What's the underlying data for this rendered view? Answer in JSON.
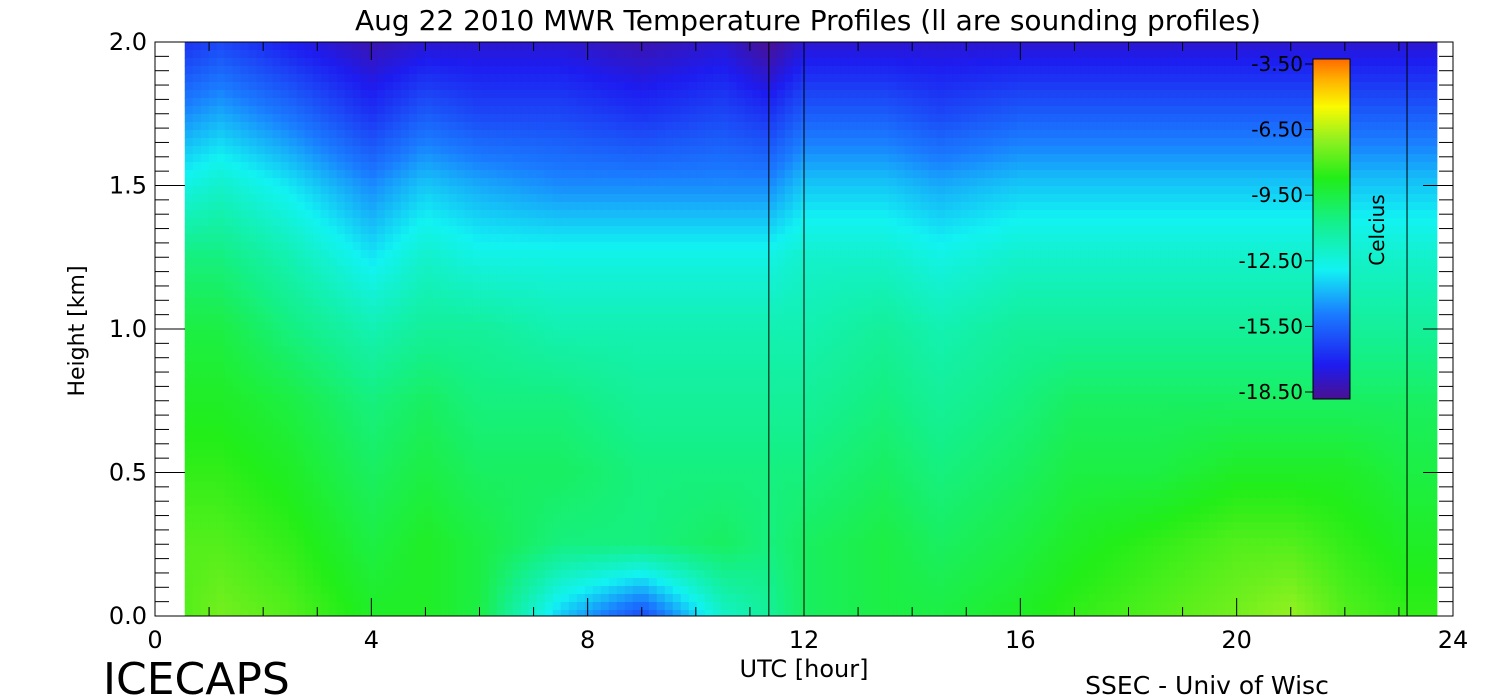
{
  "chart_data": {
    "type": "heatmap",
    "title": "Aug 22 2010 MWR Temperature Profiles (ll are sounding profiles)",
    "xlabel": "UTC [hour]",
    "ylabel": "Height [km]",
    "xlim": [
      0,
      24
    ],
    "ylim": [
      0,
      2
    ],
    "x_ticks": [
      "0",
      "4",
      "8",
      "12",
      "16",
      "20",
      "24"
    ],
    "y_ticks": [
      "0.0",
      "0.5",
      "1.0",
      "1.5",
      "2.0"
    ],
    "data_x_range": [
      0.55,
      23.7
    ],
    "colorbar": {
      "label": "Celcius",
      "range": [
        -18.5,
        -3.5
      ],
      "ticks": [
        "-3.50",
        "-6.50",
        "-9.50",
        "-12.50",
        "-15.50",
        "-18.50"
      ]
    },
    "sounding_times_hours": [
      11.35,
      12.0,
      23.15
    ],
    "approx_temperature_grid": {
      "times_hours": [
        0.55,
        1.2,
        2.5,
        4.0,
        5.0,
        6.0,
        7.5,
        9.0,
        10.5,
        11.35,
        12.0,
        13.5,
        14.5,
        16.0,
        17.0,
        18.5,
        20.0,
        21.0,
        22.0,
        23.15,
        23.7
      ],
      "heights_km": [
        0.0,
        0.25,
        0.5,
        0.75,
        1.0,
        1.25,
        1.5,
        1.75,
        2.0
      ],
      "celsius": [
        [
          -8.0,
          -8.0,
          -8.5,
          -9.0,
          -9.5,
          -10.5,
          -12.5,
          -14.5,
          -16.5
        ],
        [
          -7.5,
          -8.0,
          -8.5,
          -9.0,
          -9.5,
          -10.5,
          -12.0,
          -14.0,
          -16.0
        ],
        [
          -8.0,
          -8.5,
          -9.0,
          -9.5,
          -10.5,
          -11.5,
          -13.0,
          -15.0,
          -17.0
        ],
        [
          -9.0,
          -9.5,
          -10.0,
          -10.5,
          -11.5,
          -13.0,
          -14.5,
          -16.5,
          -18.0
        ],
        [
          -9.0,
          -9.0,
          -9.5,
          -10.0,
          -11.0,
          -12.0,
          -13.5,
          -15.5,
          -17.5
        ],
        [
          -9.5,
          -9.5,
          -10.0,
          -10.5,
          -11.0,
          -12.5,
          -14.0,
          -16.0,
          -17.5
        ],
        [
          -13.5,
          -10.5,
          -10.0,
          -10.5,
          -11.5,
          -12.5,
          -14.5,
          -16.0,
          -17.5
        ],
        [
          -16.0,
          -10.5,
          -10.5,
          -11.0,
          -11.5,
          -12.5,
          -14.5,
          -16.5,
          -18.0
        ],
        [
          -12.0,
          -10.0,
          -10.5,
          -11.0,
          -11.5,
          -12.5,
          -14.5,
          -16.0,
          -17.5
        ],
        [
          -11.0,
          -10.5,
          -10.5,
          -11.0,
          -11.5,
          -12.5,
          -14.5,
          -16.5,
          -18.5
        ],
        [
          -10.0,
          -10.0,
          -10.5,
          -11.0,
          -11.5,
          -12.0,
          -13.5,
          -15.5,
          -17.5
        ],
        [
          -9.5,
          -9.5,
          -10.0,
          -10.5,
          -11.0,
          -12.0,
          -13.5,
          -15.5,
          -17.5
        ],
        [
          -9.5,
          -10.0,
          -10.5,
          -11.0,
          -11.5,
          -12.5,
          -14.0,
          -16.0,
          -17.5
        ],
        [
          -9.0,
          -9.5,
          -10.0,
          -10.5,
          -11.0,
          -12.0,
          -13.5,
          -15.5,
          -17.5
        ],
        [
          -8.5,
          -9.0,
          -9.5,
          -10.0,
          -11.0,
          -12.0,
          -13.5,
          -15.5,
          -17.5
        ],
        [
          -8.0,
          -8.5,
          -9.5,
          -10.0,
          -11.0,
          -12.0,
          -13.5,
          -15.5,
          -17.5
        ],
        [
          -7.5,
          -8.0,
          -9.0,
          -10.0,
          -11.0,
          -12.0,
          -13.5,
          -15.5,
          -17.5
        ],
        [
          -7.0,
          -8.0,
          -9.0,
          -10.0,
          -11.0,
          -12.0,
          -13.5,
          -15.5,
          -17.5
        ],
        [
          -8.0,
          -8.5,
          -9.0,
          -10.0,
          -11.0,
          -12.0,
          -13.5,
          -15.5,
          -17.5
        ],
        [
          -8.5,
          -9.0,
          -9.5,
          -10.0,
          -11.0,
          -12.0,
          -13.5,
          -15.5,
          -17.5
        ],
        [
          -8.5,
          -9.0,
          -9.5,
          -10.0,
          -11.0,
          -12.0,
          -13.5,
          -15.5,
          -17.5
        ]
      ]
    },
    "grid": false,
    "legend_placement": "top-right"
  },
  "footer": {
    "left_text": "ICECAPS",
    "right_text": "SSEC - Univ of Wisc"
  }
}
